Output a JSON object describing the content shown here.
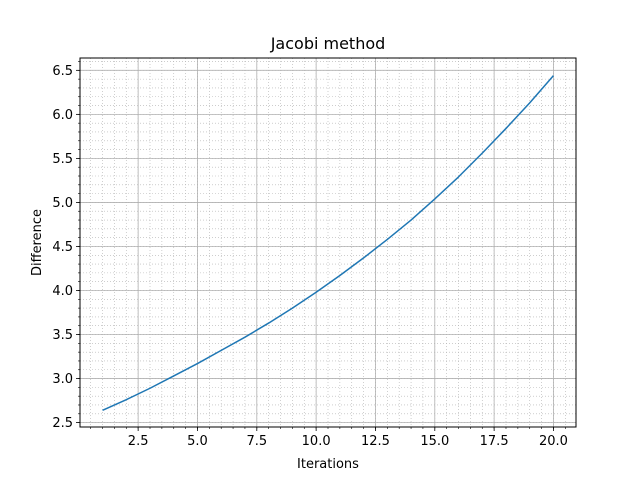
{
  "chart_data": {
    "type": "line",
    "title": "Jacobi method",
    "xlabel": "Iterations",
    "ylabel": "Difference",
    "xlim": [
      0.05,
      20.95
    ],
    "ylim": [
      2.45,
      6.64
    ],
    "grid": {
      "major": true,
      "minor": true
    },
    "x_ticks": [
      2.5,
      5.0,
      7.5,
      10.0,
      12.5,
      15.0,
      17.5,
      20.0
    ],
    "x_tick_labels": [
      "2.5",
      "5.0",
      "7.5",
      "10.0",
      "12.5",
      "15.0",
      "17.5",
      "20.0"
    ],
    "y_ticks": [
      2.5,
      3.0,
      3.5,
      4.0,
      4.5,
      5.0,
      5.5,
      6.0,
      6.5
    ],
    "y_tick_labels": [
      "2.5",
      "3.0",
      "3.5",
      "4.0",
      "4.5",
      "5.0",
      "5.5",
      "6.0",
      "6.5"
    ],
    "series": [
      {
        "color": "#1f77b4",
        "x": [
          1,
          2,
          3,
          4,
          5,
          6,
          7,
          8,
          9,
          10,
          11,
          12,
          13,
          14,
          15,
          16,
          17,
          18,
          19,
          20
        ],
        "y": [
          2.64,
          2.76,
          2.89,
          3.03,
          3.17,
          3.32,
          3.47,
          3.63,
          3.8,
          3.98,
          4.17,
          4.37,
          4.58,
          4.8,
          5.04,
          5.29,
          5.56,
          5.84,
          6.13,
          6.44
        ]
      }
    ]
  }
}
